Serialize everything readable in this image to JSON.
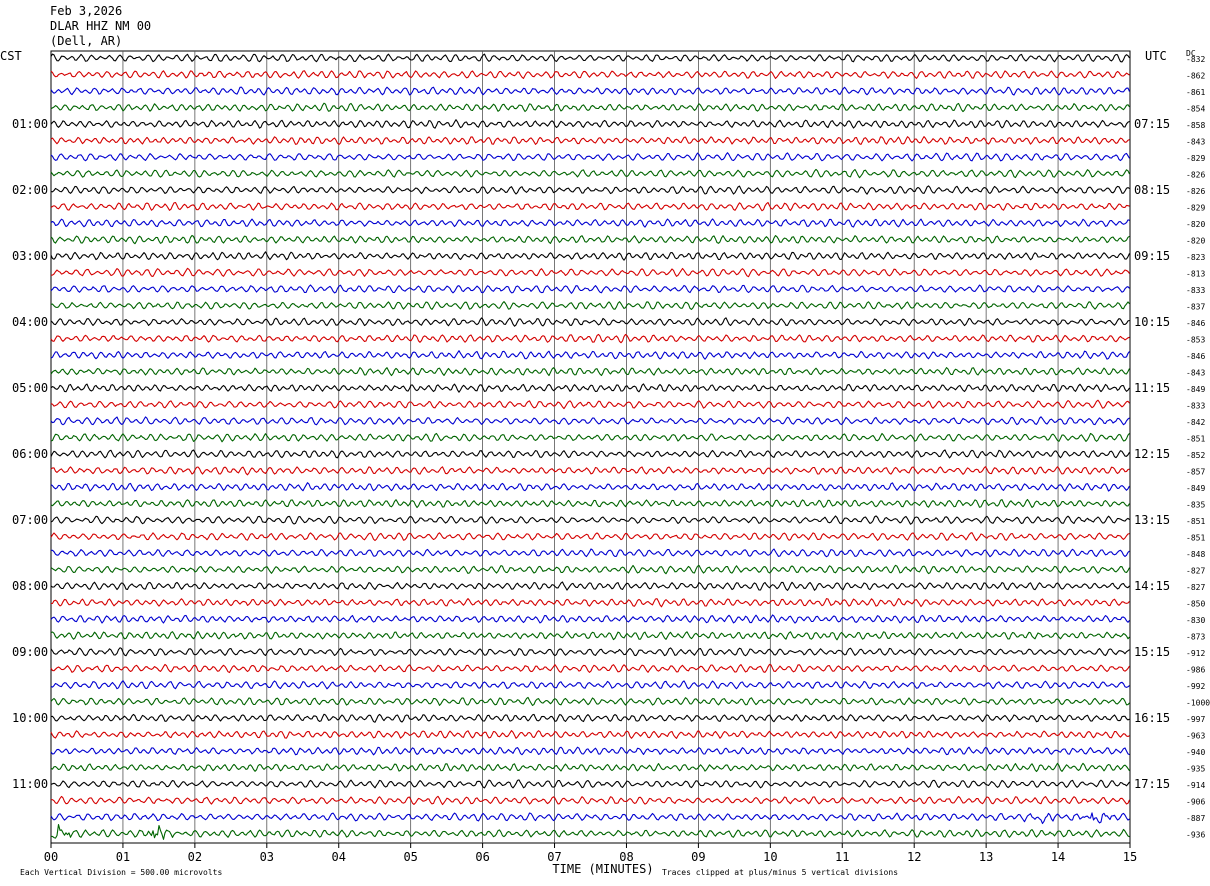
{
  "header": {
    "date": "Feb 3,2026",
    "station": "DLAR HHZ NM 00",
    "location": "(Dell, AR)"
  },
  "labels": {
    "left_tz": "CST",
    "right_tz": "UTC",
    "dc": "DC",
    "x_axis": "TIME (MINUTES)",
    "scale_note": "Each Vertical Division =  500.00 microvolts",
    "clip_note": "Traces clipped at plus/minus 5 vertical divisions"
  },
  "chart_data": {
    "type": "line",
    "title": "",
    "xlabel": "TIME (MINUTES)",
    "ylabel": "",
    "x_ticks": [
      "00",
      "01",
      "02",
      "03",
      "04",
      "05",
      "06",
      "07",
      "08",
      "09",
      "10",
      "11",
      "12",
      "13",
      "14",
      "15"
    ],
    "xlim": [
      0,
      15
    ],
    "rows_per_hour": 4,
    "trace_colors": [
      "#000000",
      "#d40000",
      "#0000d0",
      "#006400"
    ],
    "left_hour_labels": [
      "01:00",
      "02:00",
      "03:00",
      "04:00",
      "05:00",
      "06:00",
      "07:00",
      "08:00",
      "09:00",
      "10:00",
      "11:00"
    ],
    "right_hour_labels": [
      "07:15",
      "08:15",
      "09:15",
      "10:15",
      "11:15",
      "12:15",
      "13:15",
      "14:15",
      "15:15",
      "16:15",
      "17:15"
    ],
    "dc_offsets": [
      "-832",
      "-862",
      "-861",
      "-854",
      "-858",
      "-843",
      "-829",
      "-826",
      "-826",
      "-829",
      "-820",
      "-820",
      "-823",
      "-813",
      "-833",
      "-837",
      "-846",
      "-853",
      "-846",
      "-843",
      "-849",
      "-833",
      "-842",
      "-851",
      "-852",
      "-857",
      "-849",
      "-835",
      "-851",
      "-851",
      "-848",
      "-827",
      "-827",
      "-850",
      "-830",
      "-873",
      "-912",
      "-986",
      "-992",
      "-1000",
      "-997",
      "-963",
      "-940",
      "-935",
      "-914",
      "-906",
      "-887",
      "-936"
    ],
    "notable_events": [
      {
        "row": 46,
        "minute": 13.8,
        "note": "burst"
      },
      {
        "row": 46,
        "minute": 14.5,
        "note": "burst"
      },
      {
        "row": 47,
        "minute": 0.1,
        "note": "burst"
      },
      {
        "row": 47,
        "minute": 1.5,
        "note": "burst"
      }
    ]
  }
}
